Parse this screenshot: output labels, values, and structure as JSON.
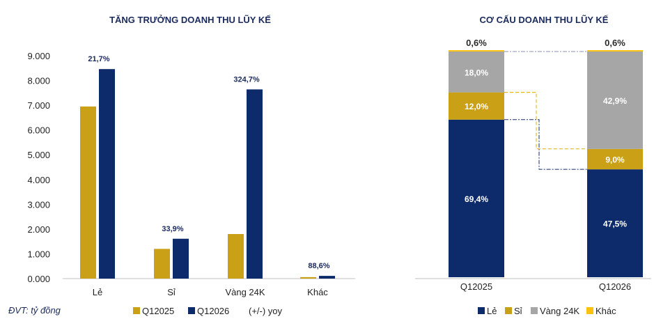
{
  "colors": {
    "gold": "#C9A016",
    "navy": "#0D2A6B",
    "grey": "#A6A6A6",
    "yellow": "#FFC20E",
    "text": "#1a2a5c"
  },
  "unit_note": "ĐVT: tỷ đồng",
  "chart_data": [
    {
      "type": "bar",
      "title": "TĂNG TRƯỞNG DOANH THU LŨY KẾ",
      "categories": [
        "Lẻ",
        "Sỉ",
        "Vàng 24K",
        "Khác"
      ],
      "series": [
        {
          "name": "Q12025",
          "values": [
            6950,
            1200,
            1800,
            60
          ]
        },
        {
          "name": "Q12026",
          "values": [
            8460,
            1610,
            7640,
            110
          ]
        }
      ],
      "growth_labels": [
        "21,7%",
        "33,9%",
        "324,7%",
        "88,6%"
      ],
      "growth_legend": "(+/-) yoy",
      "ylim": [
        0,
        9000
      ],
      "yticks": [
        "0.000",
        "1.000",
        "2.000",
        "3.000",
        "4.000",
        "5.000",
        "6.000",
        "7.000",
        "8.000",
        "9.000"
      ],
      "legend_position": "bottom"
    },
    {
      "type": "bar",
      "stacked": true,
      "percent": true,
      "title": "CƠ CẤU DOANH THU LŨY KẾ",
      "categories": [
        "Q12025",
        "Q12026"
      ],
      "series": [
        {
          "name": "Lẻ",
          "values": [
            69.4,
            47.5
          ],
          "labels": [
            "69,4%",
            "47,5%"
          ]
        },
        {
          "name": "Sỉ",
          "values": [
            12.0,
            9.0
          ],
          "labels": [
            "12,0%",
            "9,0%"
          ]
        },
        {
          "name": "Vàng 24K",
          "values": [
            18.0,
            42.9
          ],
          "labels": [
            "18,0%",
            "42,9%"
          ]
        },
        {
          "name": "Khác",
          "values": [
            0.6,
            0.6
          ],
          "labels": [
            "0,6%",
            "0,6%"
          ]
        }
      ],
      "legend_position": "bottom"
    }
  ]
}
